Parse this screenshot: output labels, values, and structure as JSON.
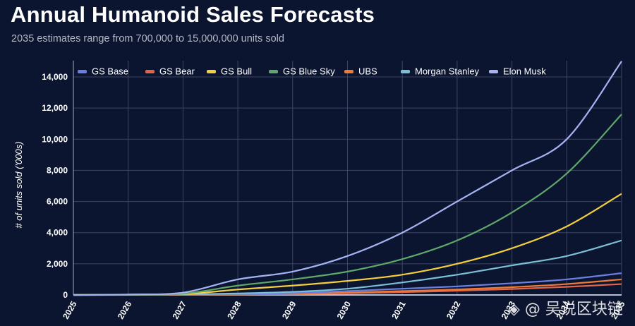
{
  "chart_data": {
    "type": "line",
    "title": "Annual Humanoid Sales Forecasts",
    "subtitle": "2035 estimates range from 700,000 to 15,000,000 units sold",
    "xlabel": "",
    "ylabel": "# of units sold ('000s)",
    "x": [
      2025,
      2026,
      2027,
      2028,
      2029,
      2030,
      2031,
      2032,
      2033,
      2034,
      2035
    ],
    "x_tick_labels": [
      "2025",
      "2026",
      "2027",
      "2028",
      "2029",
      "2030",
      "2031",
      "2032",
      "2033",
      "2034",
      "2035"
    ],
    "ylim": [
      0,
      15000
    ],
    "y_ticks": [
      0,
      2000,
      4000,
      6000,
      8000,
      10000,
      12000,
      14000
    ],
    "y_tick_labels": [
      "0",
      "2,000",
      "4,000",
      "6,000",
      "8,000",
      "10,000",
      "12,000",
      "14,000"
    ],
    "grid": true,
    "legend_position": "top",
    "series": [
      {
        "name": "GS Base",
        "color": "#6b7fe0",
        "values": [
          0,
          5,
          20,
          60,
          120,
          250,
          400,
          550,
          750,
          1000,
          1400
        ]
      },
      {
        "name": "GS Bear",
        "color": "#e2644a",
        "values": [
          0,
          3,
          10,
          30,
          60,
          110,
          180,
          270,
          380,
          520,
          700
        ]
      },
      {
        "name": "GS Bull",
        "color": "#f3cf3e",
        "values": [
          0,
          15,
          50,
          350,
          600,
          900,
          1300,
          2000,
          3000,
          4400,
          6500
        ]
      },
      {
        "name": "GS Blue Sky",
        "color": "#5fa86a",
        "values": [
          0,
          20,
          80,
          600,
          1000,
          1500,
          2300,
          3500,
          5300,
          7800,
          11600
        ]
      },
      {
        "name": "UBS",
        "color": "#ef7a35",
        "values": [
          0,
          5,
          15,
          40,
          80,
          150,
          250,
          350,
          500,
          700,
          1000
        ]
      },
      {
        "name": "Morgan Stanley",
        "color": "#7cc0d8",
        "values": [
          0,
          10,
          30,
          100,
          200,
          400,
          800,
          1300,
          1900,
          2500,
          3500
        ]
      },
      {
        "name": "Elon Musk",
        "color": "#a6b3f2",
        "values": [
          0,
          30,
          150,
          1000,
          1500,
          2500,
          4000,
          6000,
          8000,
          10000,
          15000
        ]
      }
    ]
  },
  "watermark": "◈ @ 吴说区块链"
}
